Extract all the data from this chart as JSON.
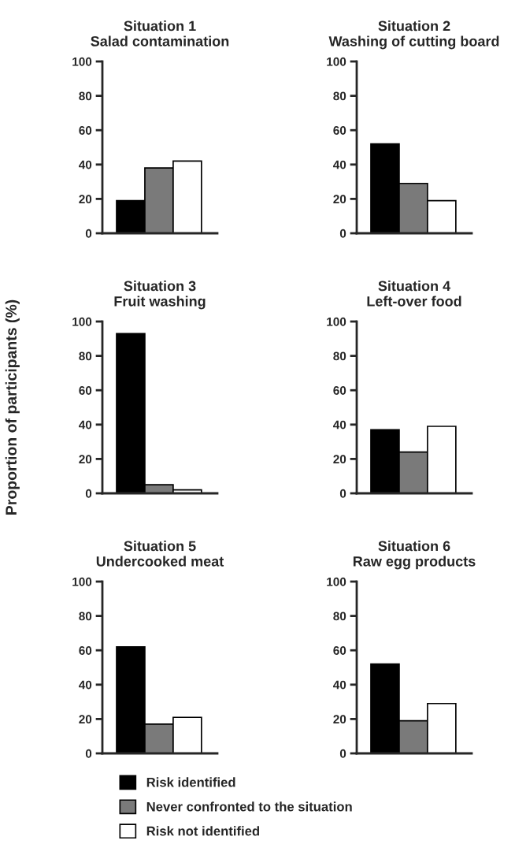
{
  "chart_data": [
    {
      "type": "bar",
      "title": "Situation 1",
      "subtitle": "Salad contamination",
      "categories": [
        null
      ],
      "ylim": [
        0,
        100
      ],
      "yticks": [
        0,
        20,
        40,
        60,
        80,
        100
      ],
      "series": [
        {
          "color": "#000000",
          "values": [
            19
          ]
        },
        {
          "color": "#7a7a7a",
          "values": [
            38
          ]
        },
        {
          "color": "#ffffff",
          "values": [
            42
          ]
        }
      ]
    },
    {
      "type": "bar",
      "title": "Situation 2",
      "subtitle": "Washing of cutting board",
      "categories": [
        null
      ],
      "ylim": [
        0,
        100
      ],
      "yticks": [
        0,
        20,
        40,
        60,
        80,
        100
      ],
      "series": [
        {
          "color": "#000000",
          "values": [
            52
          ]
        },
        {
          "color": "#7a7a7a",
          "values": [
            29
          ]
        },
        {
          "color": "#ffffff",
          "values": [
            19
          ]
        }
      ]
    },
    {
      "type": "bar",
      "title": "Situation 3",
      "subtitle": "Fruit washing",
      "ylabel": "Proportion of participants (%)",
      "categories": [
        null
      ],
      "ylim": [
        0,
        100
      ],
      "yticks": [
        0,
        20,
        40,
        60,
        80,
        100
      ],
      "series": [
        {
          "color": "#000000",
          "values": [
            93
          ]
        },
        {
          "color": "#7a7a7a",
          "values": [
            5
          ]
        },
        {
          "color": "#ffffff",
          "values": [
            2
          ]
        }
      ]
    },
    {
      "type": "bar",
      "title": "Situation 4",
      "subtitle": "Left-over food",
      "categories": [
        null
      ],
      "ylim": [
        0,
        100
      ],
      "yticks": [
        0,
        20,
        40,
        60,
        80,
        100
      ],
      "series": [
        {
          "color": "#000000",
          "values": [
            37
          ]
        },
        {
          "color": "#7a7a7a",
          "values": [
            24
          ]
        },
        {
          "color": "#ffffff",
          "values": [
            39
          ]
        }
      ]
    },
    {
      "type": "bar",
      "title": "Situation 5",
      "subtitle": "Undercooked meat",
      "categories": [
        null
      ],
      "ylim": [
        0,
        100
      ],
      "yticks": [
        0,
        20,
        40,
        60,
        80,
        100
      ],
      "series": [
        {
          "color": "#000000",
          "values": [
            62
          ]
        },
        {
          "color": "#7a7a7a",
          "values": [
            17
          ]
        },
        {
          "color": "#ffffff",
          "values": [
            21
          ]
        }
      ]
    },
    {
      "type": "bar",
      "title": "Situation 6",
      "subtitle": "Raw egg products",
      "categories": [
        null
      ],
      "ylim": [
        0,
        100
      ],
      "yticks": [
        0,
        20,
        40,
        60,
        80,
        100
      ],
      "legend": "bottom",
      "series": [
        {
          "name": "Risk identified",
          "color": "#000000",
          "values": [
            52
          ]
        },
        {
          "name": "Never confronted to the situation",
          "color": "#7a7a7a",
          "values": [
            19
          ]
        },
        {
          "name": "Risk not identified",
          "color": "#ffffff",
          "values": [
            29
          ]
        }
      ]
    }
  ]
}
